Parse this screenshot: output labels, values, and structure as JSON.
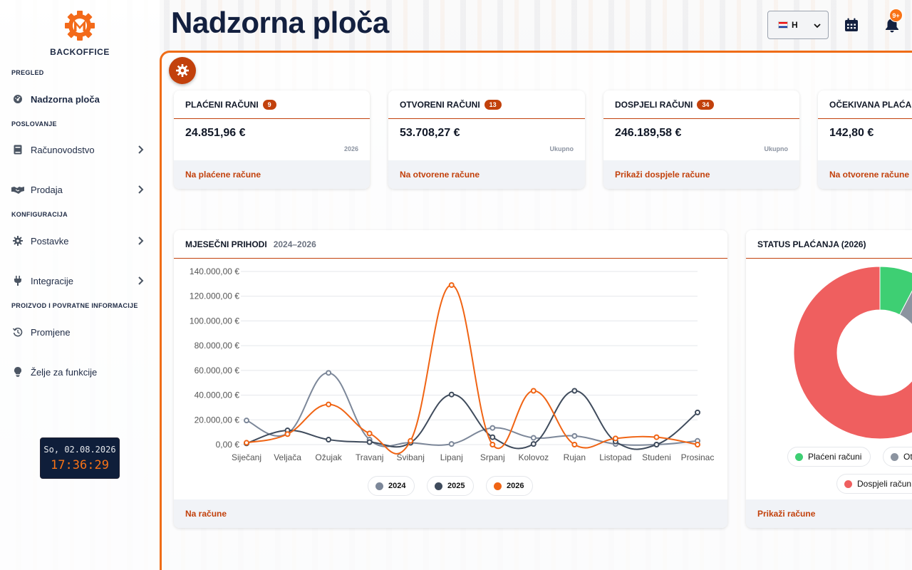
{
  "app": {
    "logo_text": "BACKOFFICE"
  },
  "sidebar": {
    "sections": [
      {
        "title": "PREGLED"
      },
      {
        "title": "POSLOVANJE"
      },
      {
        "title": "KONFIGURACIJA"
      },
      {
        "title": "PROIZVOD I POVRATNE INFORMACIJE"
      }
    ],
    "items": [
      {
        "label": "Nadzorna ploča",
        "icon": "dashboard-icon"
      },
      {
        "label": "Računovodstvo",
        "icon": "book-icon"
      },
      {
        "label": "Prodaja",
        "icon": "handshake-icon"
      },
      {
        "label": "Postavke",
        "icon": "gear-icon"
      },
      {
        "label": "Integracije",
        "icon": "plug-icon"
      },
      {
        "label": "Promjene",
        "icon": "history-icon"
      },
      {
        "label": "Želje za funkcije",
        "icon": "lightbulb-icon"
      }
    ],
    "clock": {
      "date": "So, 02.08.2026",
      "time": "17:36:29"
    }
  },
  "header": {
    "title": "Nadzorna ploča",
    "language": "H",
    "notifications_badge": "9+"
  },
  "colors": {
    "accent": "#c2410c",
    "accent_bright": "#f97316",
    "navy": "#13203f"
  },
  "cards": [
    {
      "title": "PLAĆENI RAČUNI",
      "badge": "9",
      "value": "24.851,96 €",
      "sub": "2026",
      "link": "Na plaćene račune"
    },
    {
      "title": "OTVORENI RAČUNI",
      "badge": "13",
      "value": "53.708,27 €",
      "sub": "Ukupno",
      "link": "Na otvorene račune"
    },
    {
      "title": "DOSPJELI RAČUNI",
      "badge": "34",
      "value": "246.189,58 €",
      "sub": "Ukupno",
      "link": "Prikaži dospjele račune"
    },
    {
      "title": "OČEKIVANA PLAĆANJA",
      "value": "142,80 €",
      "link": "Na otvorene račune"
    }
  ],
  "revenue": {
    "title": "MJESEČNI PRIHODI",
    "subtitle": "2024–2026",
    "link": "Na račune"
  },
  "status": {
    "title": "STATUS PLAĆANJA (2026)",
    "link": "Prikaži račune",
    "legend": [
      "Plaćeni računi",
      "Ot",
      "Dospjeli račun"
    ]
  },
  "chart_data": [
    {
      "type": "line",
      "categories": [
        "Siječanj",
        "Veljača",
        "Ožujak",
        "Travanj",
        "Svibanj",
        "Lipanj",
        "Srpanj",
        "Kolovoz",
        "Rujan",
        "Listopad",
        "Studeni",
        "Prosinac"
      ],
      "ylim": [
        0,
        140000
      ],
      "yticks": [
        "0,00 €",
        "20.000,00 €",
        "40.000,00 €",
        "60.000,00 €",
        "80.000,00 €",
        "100.000,00 €",
        "120.000,00 €",
        "140.000,00 €"
      ],
      "series": [
        {
          "name": "2024",
          "color": "#7c8799",
          "values": [
            19500,
            9000,
            58000,
            4000,
            1500,
            500,
            13500,
            5500,
            7000,
            500,
            0,
            3000
          ]
        },
        {
          "name": "2025",
          "color": "#3f4b5c",
          "values": [
            1000,
            11500,
            4000,
            2000,
            1500,
            40500,
            6000,
            500,
            43500,
            2500,
            0,
            26000
          ]
        },
        {
          "name": "2026",
          "color": "#f06414",
          "values": [
            1500,
            8500,
            32500,
            9000,
            3000,
            129000,
            0,
            43500,
            0,
            5000,
            6000,
            0
          ]
        }
      ],
      "legend": "bottom",
      "grid": true
    },
    {
      "type": "pie",
      "categories": [
        "Plaćeni računi",
        "Otvoreni računi",
        "Dospjeli računi"
      ],
      "values": [
        24851.96,
        53708.27,
        246189.58
      ],
      "colors": [
        "#3ecf73",
        "#8c94a0",
        "#ef5f5f"
      ]
    }
  ]
}
